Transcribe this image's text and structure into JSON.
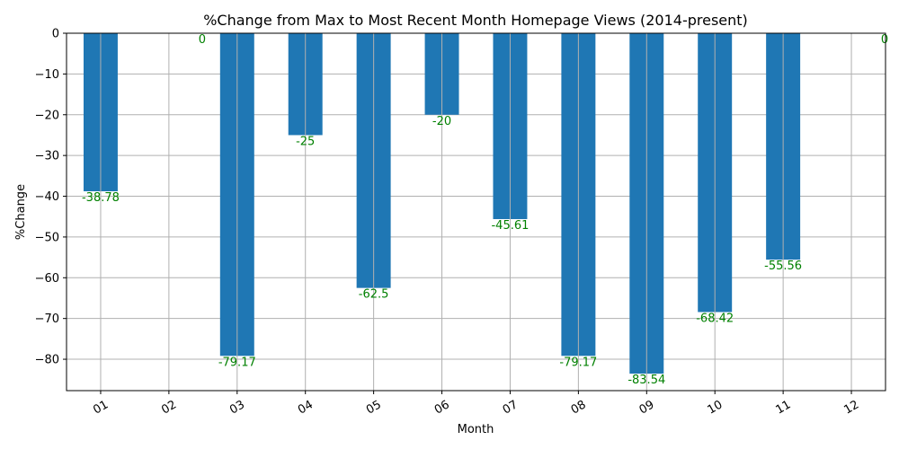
{
  "chart_data": {
    "type": "bar",
    "title": "%Change from Max to Most Recent Month Homepage Views (2014-present)",
    "xlabel": "Month",
    "ylabel": "%Change",
    "categories": [
      "01",
      "02",
      "03",
      "04",
      "05",
      "06",
      "07",
      "08",
      "09",
      "10",
      "11",
      "12"
    ],
    "values": [
      -38.78,
      0,
      -79.17,
      -25,
      -62.5,
      -20,
      -45.61,
      -79.17,
      -83.54,
      -68.42,
      -55.56,
      0
    ],
    "data_labels": [
      "-38.78",
      "0",
      "-79.17",
      "-25",
      "-62.5",
      "-20",
      "-45.61",
      "-79.17",
      "-83.54",
      "-68.42",
      "-55.56",
      "0"
    ],
    "yticks": [
      0,
      -10,
      -20,
      -30,
      -40,
      -50,
      -60,
      -70,
      -80
    ],
    "ytick_labels": [
      "0",
      "−10",
      "−20",
      "−30",
      "−40",
      "−50",
      "−60",
      "−70",
      "−80"
    ],
    "ylim": [
      -87.7,
      0
    ],
    "grid": true,
    "bar_color": "#1f77b4",
    "label_color": "#008000"
  }
}
